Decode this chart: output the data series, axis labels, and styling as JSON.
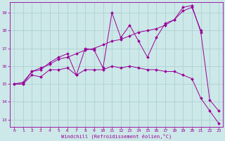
{
  "xlabel": "Windchill (Refroidissement éolien,°C)",
  "background_color": "#cce8e8",
  "grid_color": "#aacccc",
  "line_color": "#990099",
  "xlim": [
    -0.5,
    23.5
  ],
  "ylim": [
    12.6,
    19.6
  ],
  "yticks": [
    13,
    14,
    15,
    16,
    17,
    18,
    19
  ],
  "xticks": [
    0,
    1,
    2,
    3,
    4,
    5,
    6,
    7,
    8,
    9,
    10,
    11,
    12,
    13,
    14,
    15,
    16,
    17,
    18,
    19,
    20,
    21,
    22,
    23
  ],
  "series1_x": [
    0,
    1,
    2,
    3,
    4,
    5,
    6,
    7,
    8,
    9,
    10,
    11,
    12,
    13,
    14,
    15,
    16,
    17,
    18,
    19,
    20,
    21,
    22,
    23
  ],
  "series1_y": [
    15.0,
    15.0,
    15.7,
    15.8,
    16.2,
    16.5,
    16.7,
    15.5,
    17.0,
    16.9,
    15.9,
    19.0,
    17.6,
    18.3,
    17.4,
    16.5,
    17.6,
    18.4,
    18.6,
    19.3,
    19.4,
    17.9,
    14.1,
    13.5
  ],
  "series2_x": [
    0,
    1,
    2,
    3,
    4,
    5,
    6,
    7,
    8,
    9,
    10,
    11,
    12,
    13,
    14,
    15,
    16,
    17,
    18,
    19,
    20,
    21
  ],
  "series2_y": [
    15.0,
    15.1,
    15.7,
    15.9,
    16.1,
    16.4,
    16.5,
    16.7,
    16.9,
    17.0,
    17.2,
    17.4,
    17.5,
    17.7,
    17.9,
    18.0,
    18.1,
    18.3,
    18.6,
    19.1,
    19.3,
    18.0
  ],
  "series3_x": [
    0,
    1,
    2,
    3,
    4,
    5,
    6,
    7,
    8,
    9,
    10,
    11,
    12,
    13,
    14,
    15,
    16,
    17,
    18,
    19,
    20,
    21,
    22,
    23
  ],
  "series3_y": [
    15.0,
    15.0,
    15.5,
    15.4,
    15.8,
    15.8,
    15.9,
    15.5,
    15.8,
    15.8,
    15.8,
    16.0,
    15.9,
    16.0,
    15.9,
    15.8,
    15.8,
    15.7,
    15.7,
    15.5,
    15.3,
    14.2,
    13.5,
    12.8
  ]
}
